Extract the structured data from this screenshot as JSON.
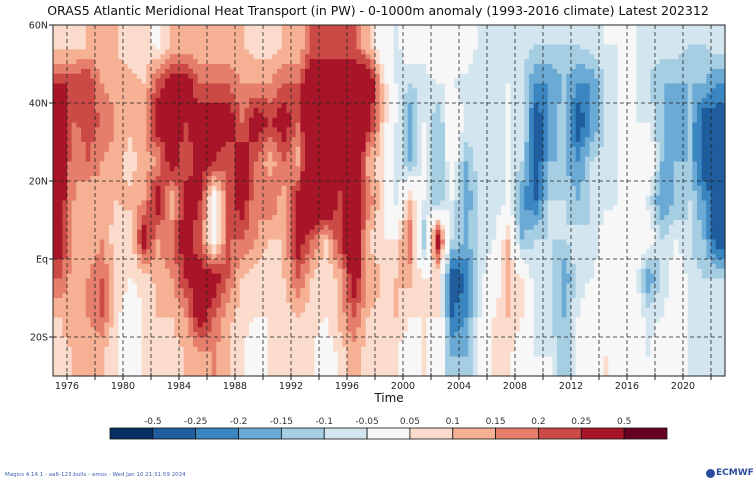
{
  "title": "ORAS5 Atlantic Meridional Heat Transport (in PW) - 0-1000m anomaly (1993-2016 climate) Latest 202312",
  "footer": "Magics 4.14.1 - aa6-123.bullx - emos - Wed Jan 10 21:31:59 2024",
  "logo": "ECMWF",
  "chart_data": {
    "type": "heatmap",
    "title": "ORAS5 Atlantic Meridional Heat Transport (in PW) - 0-1000m anomaly (1993-2016 climate) Latest 202312",
    "xlabel": "Time",
    "ylabel": "",
    "xlim": [
      1975,
      2023
    ],
    "ylim": [
      -30,
      60
    ],
    "grid": true,
    "x_ticks": [
      1976,
      1980,
      1984,
      1988,
      1992,
      1996,
      2000,
      2004,
      2008,
      2012,
      2016,
      2020
    ],
    "y_ticks": [
      {
        "value": 60,
        "label": "60N"
      },
      {
        "value": 40,
        "label": "40N"
      },
      {
        "value": 20,
        "label": "20N"
      },
      {
        "value": 0,
        "label": "Eq"
      },
      {
        "value": -20,
        "label": "20S"
      }
    ],
    "x_years": [
      1975,
      1976,
      1977,
      1978,
      1979,
      1980,
      1981,
      1982,
      1983,
      1984,
      1985,
      1986,
      1987,
      1988,
      1989,
      1990,
      1991,
      1992,
      1993,
      1994,
      1995,
      1996,
      1997,
      1998,
      1999,
      2000,
      2001,
      2002,
      2003,
      2004,
      2005,
      2006,
      2007,
      2008,
      2009,
      2010,
      2011,
      2012,
      2013,
      2014,
      2015,
      2016,
      2017,
      2018,
      2019,
      2020,
      2021,
      2022
    ],
    "lat_bands": [
      {
        "lat": 55,
        "values": [
          0.07,
          0.07,
          0.1,
          0.1,
          0.1,
          0.07,
          0.07,
          0.03,
          0.1,
          0.1,
          0.1,
          0.1,
          0.1,
          0.1,
          0.07,
          0.07,
          0.1,
          0.1,
          0.2,
          0.2,
          0.2,
          0.2,
          0.1,
          0,
          -0.07,
          0,
          -0.03,
          0,
          -0.03,
          0,
          -0.07,
          -0.07,
          -0.07,
          -0.07,
          -0.1,
          -0.1,
          -0.1,
          -0.1,
          -0.07,
          -0.05,
          -0.05,
          -0.05,
          -0.07,
          -0.07,
          -0.07,
          -0.1,
          -0.1,
          -0.07
        ]
      },
      {
        "lat": 45,
        "values": [
          0.25,
          0.25,
          0.25,
          0.15,
          0.12,
          0.12,
          0.1,
          0.22,
          0.3,
          0.3,
          0.2,
          0.2,
          0.2,
          0.15,
          0.15,
          0.15,
          0.2,
          0.2,
          0.35,
          0.35,
          0.35,
          0.35,
          0.35,
          0.1,
          -0.05,
          -0.1,
          -0.07,
          -0.05,
          -0.05,
          -0.07,
          -0.1,
          -0.07,
          -0.05,
          -0.1,
          -0.2,
          -0.2,
          -0.15,
          -0.2,
          -0.2,
          -0.1,
          -0.05,
          -0.05,
          -0.1,
          -0.15,
          -0.15,
          -0.15,
          -0.15,
          -0.2
        ]
      },
      {
        "lat": 35,
        "values": [
          0.3,
          0.2,
          0.22,
          0.2,
          0.15,
          0.12,
          0.15,
          0.3,
          0.3,
          0.25,
          0.3,
          0.3,
          0.3,
          0.2,
          0.3,
          0.25,
          0.3,
          0.2,
          0.4,
          0.4,
          0.4,
          0.4,
          0.3,
          0.1,
          -0.05,
          -0.2,
          -0.05,
          -0.15,
          0,
          -0.05,
          -0.1,
          -0.1,
          -0.05,
          -0.05,
          -0.3,
          -0.2,
          -0.1,
          -0.3,
          -0.2,
          -0.1,
          -0.05,
          -0.05,
          -0.05,
          -0.15,
          -0.2,
          -0.15,
          -0.3,
          -0.3
        ]
      },
      {
        "lat": 25,
        "values": [
          0.3,
          0.15,
          0.2,
          0.15,
          0.12,
          0.07,
          0.12,
          0.15,
          0.3,
          0.2,
          0.3,
          0.25,
          0.2,
          0.3,
          0.2,
          0.12,
          0.2,
          0.12,
          0.4,
          0.4,
          0.4,
          0.4,
          0.12,
          0.07,
          -0.07,
          -0.15,
          -0.05,
          -0.15,
          0,
          -0.15,
          -0.07,
          -0.07,
          -0.05,
          -0.1,
          -0.3,
          -0.15,
          -0.15,
          -0.2,
          -0.1,
          -0.07,
          -0.05,
          -0.05,
          0.05,
          -0.15,
          -0.15,
          -0.15,
          -0.3,
          -0.3
        ]
      },
      {
        "lat": 15,
        "values": [
          0.3,
          0.15,
          0.1,
          0.12,
          0.1,
          0.12,
          0.15,
          0.3,
          0.1,
          0.3,
          0.25,
          0,
          0.2,
          0.3,
          0.15,
          0.2,
          0.12,
          0.3,
          0.4,
          0.4,
          0.2,
          0.35,
          0.2,
          0.07,
          -0.07,
          0.1,
          -0.05,
          -0.15,
          -0.05,
          -0.2,
          -0.07,
          -0.1,
          -0.05,
          -0.2,
          -0.25,
          -0.1,
          -0.1,
          -0.15,
          -0.1,
          -0.07,
          -0.05,
          0.05,
          -0.07,
          -0.2,
          -0.15,
          -0.1,
          -0.2,
          -0.3
        ]
      },
      {
        "lat": 5,
        "values": [
          0.3,
          0.1,
          0.1,
          0.15,
          0.07,
          0.05,
          0.3,
          0.15,
          0.2,
          0.3,
          0.2,
          0,
          0.2,
          0.2,
          0.15,
          0.1,
          0.1,
          0.3,
          0.2,
          0.1,
          0.25,
          0.35,
          0.1,
          0.05,
          0.05,
          0.2,
          -0.15,
          0.3,
          -0.1,
          -0.15,
          -0.1,
          -0.05,
          0.1,
          -0.15,
          -0.1,
          -0.1,
          -0.1,
          -0.07,
          -0.1,
          0,
          0,
          0,
          0,
          -0.1,
          -0.05,
          -0.1,
          -0.15,
          -0.3
        ]
      },
      {
        "lat": -5,
        "values": [
          0.2,
          0.12,
          0.15,
          0.2,
          0.1,
          0.05,
          0.07,
          0.12,
          0.15,
          0.25,
          0.3,
          0.3,
          0.2,
          0.1,
          0.07,
          0.05,
          0.1,
          0.2,
          0.1,
          0.05,
          0.12,
          0.3,
          0.15,
          0.1,
          0.1,
          0.12,
          0.05,
          0.05,
          -0.3,
          -0.25,
          -0.07,
          0,
          0.1,
          0.05,
          -0.1,
          -0.05,
          -0.2,
          -0.07,
          -0.05,
          0,
          0.05,
          0,
          -0.2,
          -0.1,
          0,
          -0.07,
          -0.1,
          -0.1
        ]
      },
      {
        "lat": -15,
        "values": [
          0.1,
          0.15,
          0.15,
          0.2,
          0.07,
          0,
          0.05,
          0.1,
          0.1,
          0.15,
          0.3,
          0.2,
          0.12,
          0.07,
          0.05,
          0.05,
          0.07,
          0.1,
          0.07,
          0.05,
          0.12,
          0.2,
          0.1,
          0.07,
          0.1,
          0.05,
          0.05,
          0.05,
          -0.25,
          -0.2,
          -0.05,
          0.05,
          0.1,
          0.05,
          -0.07,
          -0.1,
          -0.15,
          -0.05,
          0,
          0,
          0,
          0,
          -0.07,
          -0.05,
          0,
          -0.07,
          -0.07,
          -0.07
        ]
      },
      {
        "lat": -25,
        "values": [
          0.07,
          0.1,
          0.1,
          0.1,
          0.05,
          0,
          0.05,
          0.07,
          0.07,
          0.1,
          0.12,
          0.15,
          0.1,
          0.05,
          0,
          0.05,
          0.05,
          0.07,
          0.05,
          0,
          0.07,
          0.12,
          0.07,
          0.05,
          0.05,
          0,
          0.05,
          0,
          -0.15,
          -0.15,
          -0.05,
          0.05,
          0.07,
          0,
          -0.05,
          -0.05,
          -0.15,
          -0.05,
          0,
          0.05,
          0,
          0,
          -0.05,
          0,
          0,
          -0.07,
          -0.07,
          -0.1
        ]
      }
    ],
    "colorbar": {
      "labels": [
        "-0.5",
        "-0.25",
        "-0.2",
        "-0.15",
        "-0.1",
        "-0.05",
        "0.05",
        "0.1",
        "0.15",
        "0.2",
        "0.25",
        "0.5"
      ],
      "thresholds": [
        -0.5,
        -0.25,
        -0.2,
        -0.15,
        -0.1,
        -0.05,
        0.05,
        0.1,
        0.15,
        0.2,
        0.25,
        0.5
      ],
      "colors": [
        "#053061",
        "#1f5d9f",
        "#3a86c0",
        "#6aaad4",
        "#a6cee3",
        "#d3e6f0",
        "#f7f7f7",
        "#fbdccc",
        "#f6b094",
        "#e57f6b",
        "#cb4a45",
        "#a81528",
        "#670020"
      ]
    }
  }
}
